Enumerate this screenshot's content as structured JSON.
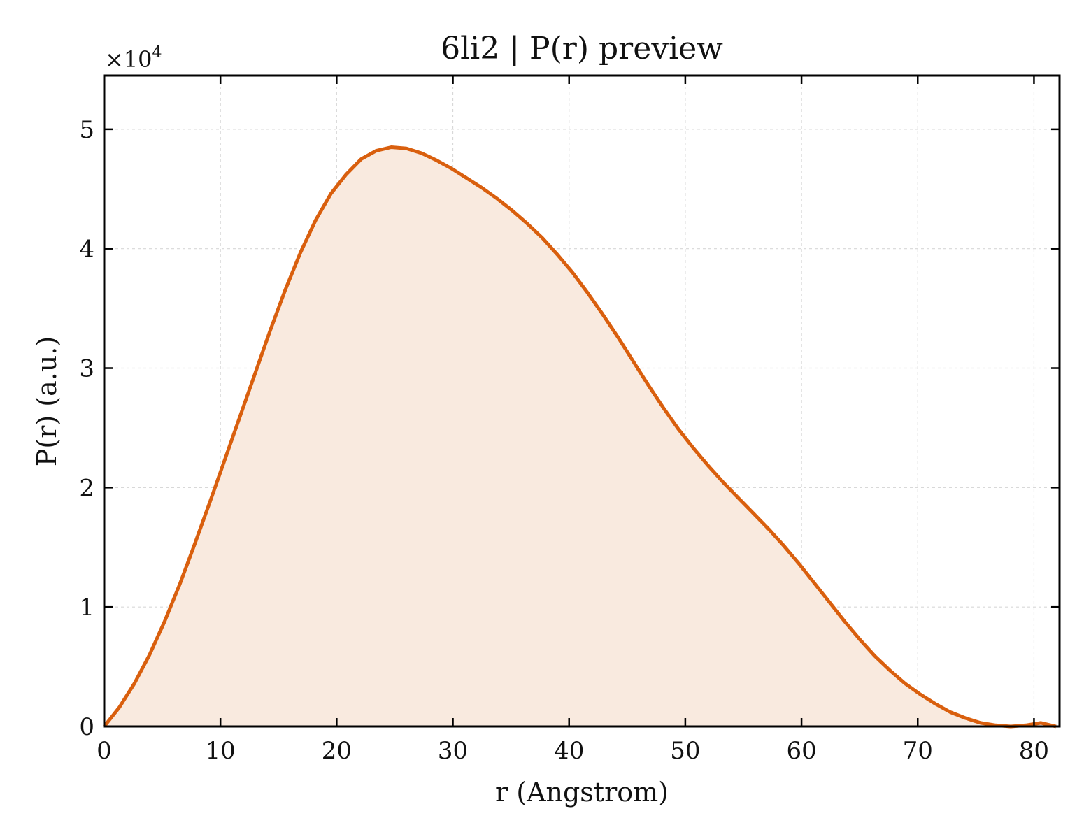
{
  "chart_data": {
    "type": "area",
    "title": "6li2 | P(r) preview",
    "xlabel": "r (Angstrom)",
    "ylabel": "P(r) (a.u.)",
    "y_multiplier": {
      "base": "×10",
      "exponent": "4"
    },
    "xlim": [
      0,
      82.2
    ],
    "ylim": [
      0,
      5.45
    ],
    "y_scale_factor": 10000,
    "x_ticks": [
      0,
      10,
      20,
      30,
      40,
      50,
      60,
      70,
      80
    ],
    "x_tick_labels": [
      "0",
      "10",
      "20",
      "30",
      "40",
      "50",
      "60",
      "70",
      "80"
    ],
    "y_ticks": [
      0,
      1,
      2,
      3,
      4,
      5
    ],
    "y_tick_labels": [
      "0",
      "1",
      "2",
      "3",
      "4",
      "5"
    ],
    "grid": true,
    "line_color": "#d95f0e",
    "fill_color": "#f9eadf",
    "series": [
      {
        "x": [
          0,
          1.3,
          2.6,
          3.9,
          5.2,
          6.5,
          7.8,
          9.1,
          10.4,
          11.7,
          13.0,
          14.3,
          15.6,
          16.9,
          18.2,
          19.5,
          20.8,
          22.1,
          23.4,
          24.7,
          26.0,
          27.3,
          28.6,
          29.9,
          31.2,
          32.5,
          33.8,
          35.1,
          36.4,
          37.7,
          39.0,
          40.3,
          41.6,
          42.9,
          44.2,
          45.5,
          46.8,
          48.1,
          49.4,
          50.7,
          52.0,
          53.3,
          54.6,
          55.9,
          57.2,
          58.5,
          59.8,
          61.1,
          62.4,
          63.7,
          65.0,
          66.3,
          67.6,
          68.9,
          70.2,
          71.5,
          72.8,
          74.1,
          75.4,
          76.7,
          78.0,
          79.3,
          80.6,
          81.9
        ],
        "y": [
          0.0,
          0.16,
          0.36,
          0.6,
          0.88,
          1.19,
          1.53,
          1.88,
          2.24,
          2.6,
          2.96,
          3.32,
          3.66,
          3.97,
          4.24,
          4.46,
          4.62,
          4.75,
          4.82,
          4.85,
          4.84,
          4.8,
          4.74,
          4.67,
          4.59,
          4.51,
          4.42,
          4.32,
          4.21,
          4.09,
          3.95,
          3.8,
          3.63,
          3.45,
          3.26,
          3.06,
          2.86,
          2.67,
          2.49,
          2.33,
          2.18,
          2.04,
          1.91,
          1.78,
          1.65,
          1.51,
          1.36,
          1.2,
          1.04,
          0.88,
          0.73,
          0.59,
          0.47,
          0.36,
          0.27,
          0.19,
          0.12,
          0.07,
          0.03,
          0.01,
          0.0,
          0.01,
          0.03,
          0.0
        ]
      }
    ]
  }
}
